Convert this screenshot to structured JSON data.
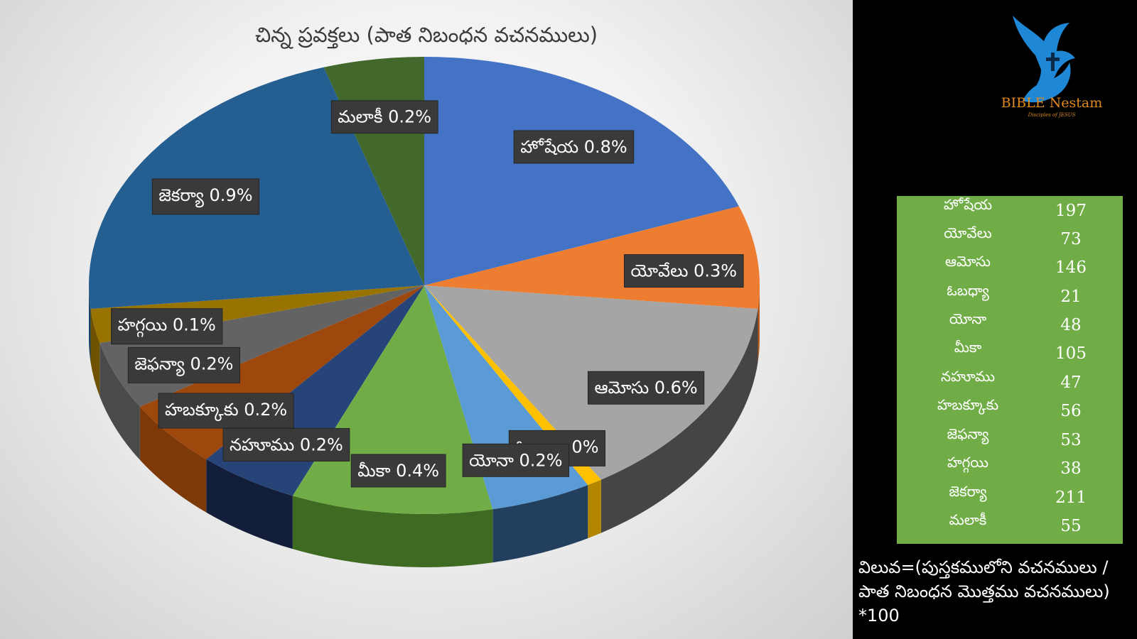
{
  "chart_data": {
    "type": "pie",
    "title": "చిన్న ప్రవక్తలు (పాత నిబంధన వచనములు)",
    "slices": [
      {
        "name": "హోషేయ",
        "value": 0.8,
        "label": "హోషేయ 0.8%",
        "color": "#4472c4",
        "side": "#2f5597"
      },
      {
        "name": "యోవేలు",
        "value": 0.3,
        "label": "యోవేలు 0.3%",
        "color": "#ed7d31",
        "side": "#b45a1e"
      },
      {
        "name": "ఆమోసు",
        "value": 0.6,
        "label": "ఆమోసు 0.6%",
        "color": "#a5a5a5",
        "side": "#454545"
      },
      {
        "name": "ఓబధ్యా",
        "value": 0.0,
        "label": "ఓబధ్యా 0%",
        "color": "#ffc000",
        "side": "#b38600"
      },
      {
        "name": "యోనా",
        "value": 0.2,
        "label": "యోనా 0.2%",
        "color": "#5b9bd5",
        "side": "#22405e"
      },
      {
        "name": "మీకా",
        "value": 0.4,
        "label": "మీకా 0.4%",
        "color": "#70ad47",
        "side": "#3f6a22"
      },
      {
        "name": "నహూము",
        "value": 0.2,
        "label": "నహూము 0.2%",
        "color": "#264478",
        "side": "#131f3a"
      },
      {
        "name": "హబక్కూకు",
        "value": 0.2,
        "label": "హబక్కూకు 0.2%",
        "color": "#9e480e",
        "side": "#7e3908"
      },
      {
        "name": "జెఫన్యా",
        "value": 0.2,
        "label": "జెఫన్యా 0.2%",
        "color": "#636363",
        "side": "#4a4a4a"
      },
      {
        "name": "హగ్గయి",
        "value": 0.1,
        "label": "హగ్గయి 0.1%",
        "color": "#997300",
        "side": "#6e5200"
      },
      {
        "name": "జెకర్యా",
        "value": 0.9,
        "label": "జెకర్యా 0.9%",
        "color": "#255e91",
        "side": "#1a4368"
      },
      {
        "name": "మలాకీ",
        "value": 0.2,
        "label": "మలాకీ 0.2%",
        "color": "#43682b",
        "side": "#2e4a1c"
      }
    ]
  },
  "logo": {
    "title": "BIBLE Nestam",
    "subtitle": "Disciples of JESUS"
  },
  "table": {
    "rows": [
      {
        "name": "హోషేయ",
        "value": "197"
      },
      {
        "name": "యోవేలు",
        "value": "73"
      },
      {
        "name": "ఆమోసు",
        "value": "146"
      },
      {
        "name": "ఓబధ్యా",
        "value": "21"
      },
      {
        "name": "యోనా",
        "value": "48"
      },
      {
        "name": "మీకా",
        "value": "105"
      },
      {
        "name": "నహూము",
        "value": "47"
      },
      {
        "name": "హబక్కూకు",
        "value": "56"
      },
      {
        "name": "జెఫన్యా",
        "value": "53"
      },
      {
        "name": "హగ్గయి",
        "value": "38"
      },
      {
        "name": "జెకర్యా",
        "value": "211"
      },
      {
        "name": "మలాకీ",
        "value": "55"
      }
    ]
  },
  "formula": {
    "line1": "విలువ=(పుస్తకములోని వచనములు /",
    "line2": "పాత నిబంధన మొత్తము వచనములు)",
    "line3": "*100"
  },
  "colors": {
    "table_bg": "#70ad47",
    "logo_orange": "#e08a1e",
    "logo_blue": "#1e88d6"
  }
}
